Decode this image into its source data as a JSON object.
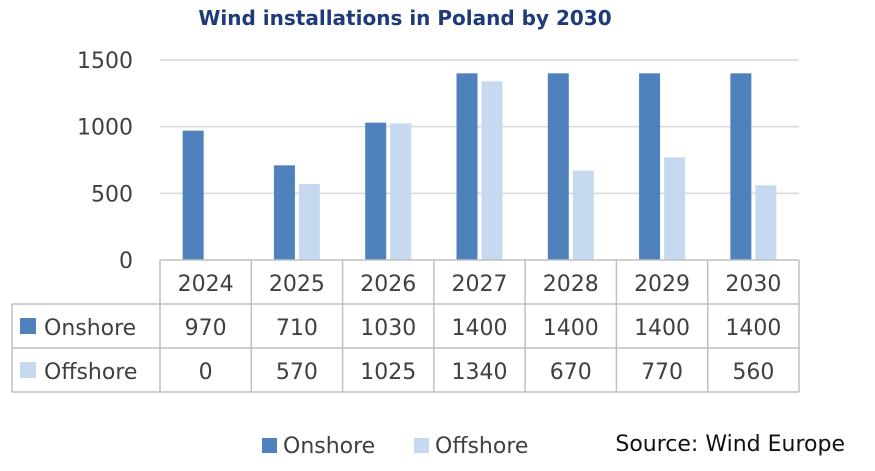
{
  "chart_data": {
    "type": "bar",
    "title": "Wind installations in Poland by 2030",
    "categories": [
      "2024",
      "2025",
      "2026",
      "2027",
      "2028",
      "2029",
      "2030"
    ],
    "series": [
      {
        "name": "Onshore",
        "values": [
          970,
          710,
          1030,
          1400,
          1400,
          1400,
          1400
        ],
        "color": "#4f81bd"
      },
      {
        "name": "Offshore",
        "values": [
          0,
          570,
          1025,
          1340,
          670,
          770,
          560
        ],
        "color": "#c6d9f1"
      }
    ],
    "ylim": [
      0,
      1500
    ],
    "yticks": [
      0,
      500,
      1000,
      1500
    ],
    "grid": true,
    "data_table": true,
    "legend": "bottom",
    "source": "Source: Wind Europe"
  }
}
